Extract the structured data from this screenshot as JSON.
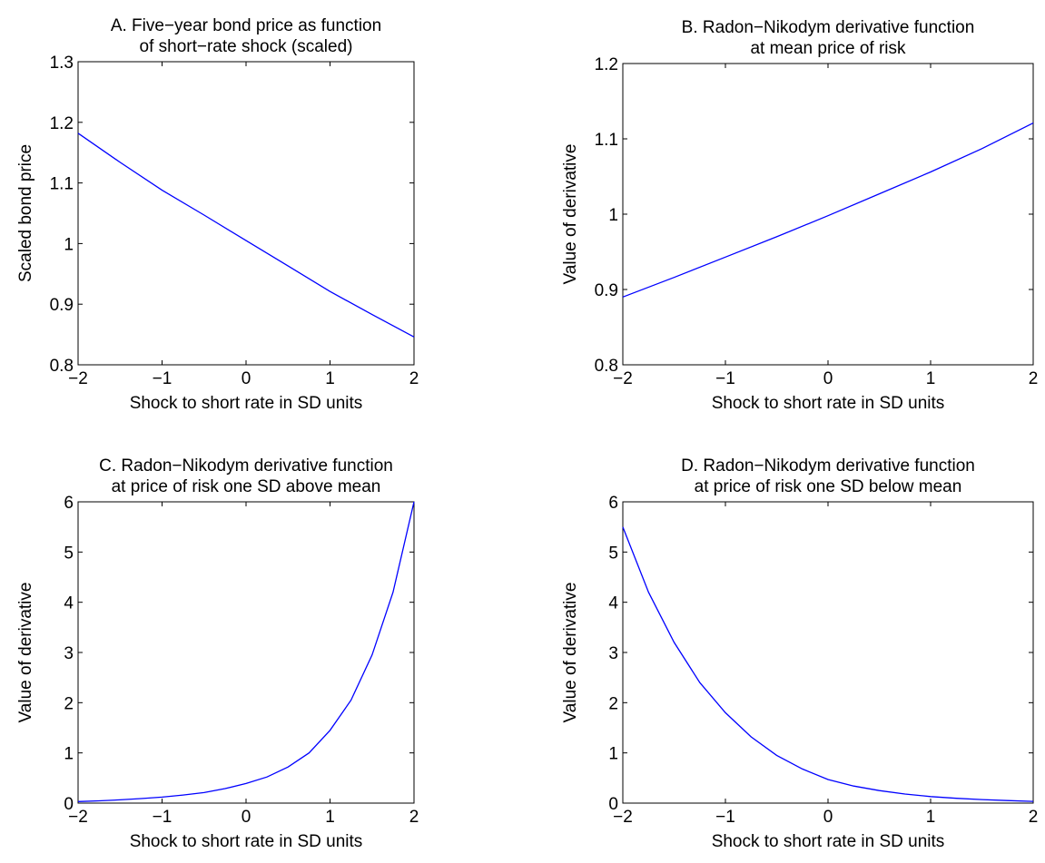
{
  "chart_data": [
    {
      "type": "line",
      "panel": "A",
      "title": [
        "A.  Five−year bond price as function",
        "of short−rate shock (scaled)"
      ],
      "xlabel": "Shock to short rate in SD units",
      "ylabel": "Scaled bond price",
      "xlim": [
        -2,
        2
      ],
      "ylim": [
        0.8,
        1.3
      ],
      "xticks": [
        -2,
        -1,
        0,
        1,
        2
      ],
      "xtick_labels": [
        "−2",
        "−1",
        "0",
        "1",
        "2"
      ],
      "yticks": [
        0.8,
        0.9,
        1.0,
        1.1,
        1.2,
        1.3
      ],
      "ytick_labels": [
        "0.8",
        "0.9",
        "1",
        "1.1",
        "1.2",
        "1.3"
      ],
      "grid": false,
      "series": [
        {
          "color": "#0000ff",
          "x": [
            -2,
            -1.5,
            -1,
            -0.5,
            0,
            0.5,
            1,
            1.5,
            2
          ],
          "y": [
            1.182,
            1.134,
            1.088,
            1.047,
            1.005,
            0.963,
            0.921,
            0.883,
            0.846
          ]
        }
      ]
    },
    {
      "type": "line",
      "panel": "B",
      "title": [
        "B.  Radon−Nikodym derivative function",
        "at mean price of risk"
      ],
      "xlabel": "Shock to short rate in SD units",
      "ylabel": "Value of derivative",
      "xlim": [
        -2,
        2
      ],
      "ylim": [
        0.8,
        1.2
      ],
      "xticks": [
        -2,
        -1,
        0,
        1,
        2
      ],
      "xtick_labels": [
        "−2",
        "−1",
        "0",
        "1",
        "2"
      ],
      "yticks": [
        0.8,
        0.9,
        1.0,
        1.1,
        1.2
      ],
      "ytick_labels": [
        "0.8",
        "0.9",
        "1",
        "1.1",
        "1.2"
      ],
      "grid": false,
      "series": [
        {
          "color": "#0000ff",
          "x": [
            -2,
            -1.5,
            -1,
            -0.5,
            0,
            0.5,
            1,
            1.5,
            2
          ],
          "y": [
            0.89,
            0.916,
            0.943,
            0.97,
            0.998,
            1.027,
            1.056,
            1.087,
            1.121
          ]
        }
      ]
    },
    {
      "type": "line",
      "panel": "C",
      "title": [
        "C.  Radon−Nikodym derivative function",
        "at price of risk one SD above mean"
      ],
      "xlabel": "Shock to short rate in SD units",
      "ylabel": "Value of derivative",
      "xlim": [
        -2,
        2
      ],
      "ylim": [
        0,
        6
      ],
      "xticks": [
        -2,
        -1,
        0,
        1,
        2
      ],
      "xtick_labels": [
        "−2",
        "−1",
        "0",
        "1",
        "2"
      ],
      "yticks": [
        0,
        1,
        2,
        3,
        4,
        5,
        6
      ],
      "ytick_labels": [
        "0",
        "1",
        "2",
        "3",
        "4",
        "5",
        "6"
      ],
      "grid": false,
      "series": [
        {
          "color": "#0000ff",
          "x": [
            -2,
            -1.75,
            -1.5,
            -1.25,
            -1,
            -0.75,
            -0.5,
            -0.25,
            0,
            0.25,
            0.5,
            0.75,
            1,
            1.25,
            1.5,
            1.75,
            2
          ],
          "y": [
            0.03,
            0.045,
            0.065,
            0.09,
            0.12,
            0.16,
            0.21,
            0.29,
            0.39,
            0.52,
            0.72,
            1.0,
            1.45,
            2.05,
            2.95,
            4.2,
            6.0
          ]
        }
      ]
    },
    {
      "type": "line",
      "panel": "D",
      "title": [
        "D.  Radon−Nikodym derivative function",
        "at price of risk one SD below mean"
      ],
      "xlabel": "Shock to short rate in SD units",
      "ylabel": "Value of derivative",
      "xlim": [
        -2,
        2
      ],
      "ylim": [
        0,
        6
      ],
      "xticks": [
        -2,
        -1,
        0,
        1,
        2
      ],
      "xtick_labels": [
        "−2",
        "−1",
        "0",
        "1",
        "2"
      ],
      "yticks": [
        0,
        1,
        2,
        3,
        4,
        5,
        6
      ],
      "ytick_labels": [
        "0",
        "1",
        "2",
        "3",
        "4",
        "5",
        "6"
      ],
      "grid": false,
      "series": [
        {
          "color": "#0000ff",
          "x": [
            -2,
            -1.75,
            -1.5,
            -1.25,
            -1,
            -0.75,
            -0.5,
            -0.25,
            0,
            0.25,
            0.5,
            0.75,
            1,
            1.25,
            1.5,
            1.75,
            2
          ],
          "y": [
            5.5,
            4.2,
            3.2,
            2.4,
            1.8,
            1.32,
            0.95,
            0.68,
            0.47,
            0.34,
            0.25,
            0.18,
            0.13,
            0.095,
            0.07,
            0.05,
            0.035
          ]
        }
      ]
    }
  ]
}
